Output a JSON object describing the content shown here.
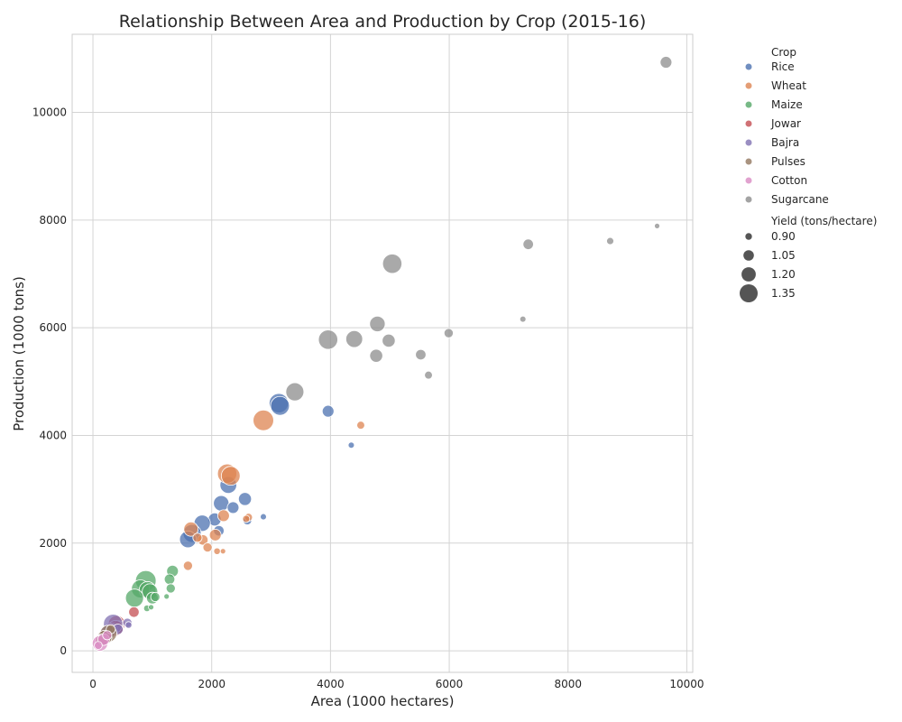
{
  "chart_data": {
    "type": "scatter",
    "title": "Relationship Between Area and Production by Crop (2015-16)",
    "xlabel": "Area (1000 hectares)",
    "ylabel": "Production (1000 tons)",
    "xlim": [
      -350,
      10100
    ],
    "ylim": [
      -400,
      11450
    ],
    "xticks": [
      0,
      2000,
      4000,
      6000,
      8000,
      10000
    ],
    "yticks": [
      0,
      2000,
      4000,
      6000,
      8000,
      10000
    ],
    "grid": true,
    "legend_position": "outside-right",
    "hue_title": "Crop",
    "size_title": "Yield (tons/hectare)",
    "size_legend": [
      {
        "label": "0.90",
        "value": 0.9
      },
      {
        "label": "1.05",
        "value": 1.05
      },
      {
        "label": "1.20",
        "value": 1.2
      },
      {
        "label": "1.35",
        "value": 1.35
      }
    ],
    "series": [
      {
        "name": "Rice",
        "color": "#4c72b0",
        "points": [
          [
            3130,
            4600,
            1.4
          ],
          [
            3150,
            4550,
            1.38
          ],
          [
            3960,
            4450,
            1.1
          ],
          [
            4350,
            3820,
            0.88
          ],
          [
            2280,
            3080,
            1.3
          ],
          [
            2160,
            2740,
            1.25
          ],
          [
            2560,
            2820,
            1.15
          ],
          [
            2360,
            2660,
            1.1
          ],
          [
            2050,
            2440,
            1.15
          ],
          [
            1840,
            2370,
            1.28
          ],
          [
            2120,
            2230,
            1.05
          ],
          [
            1670,
            2180,
            1.35
          ],
          [
            1600,
            2070,
            1.3
          ],
          [
            2600,
            2420,
            0.98
          ],
          [
            2870,
            2490,
            0.88
          ]
        ]
      },
      {
        "name": "Wheat",
        "color": "#dd8452",
        "points": [
          [
            2870,
            4280,
            1.45
          ],
          [
            4510,
            4190,
            0.95
          ],
          [
            2260,
            3290,
            1.4
          ],
          [
            2320,
            3250,
            1.38
          ],
          [
            2200,
            2510,
            1.1
          ],
          [
            2620,
            2480,
            0.95
          ],
          [
            2580,
            2450,
            0.92
          ],
          [
            1650,
            2260,
            1.2
          ],
          [
            2060,
            2150,
            1.1
          ],
          [
            1850,
            2060,
            1.05
          ],
          [
            1930,
            1920,
            1.0
          ],
          [
            2090,
            1850,
            0.9
          ],
          [
            2190,
            1850,
            0.85
          ],
          [
            1600,
            1580,
            1.0
          ],
          [
            1760,
            2100,
            1.0
          ]
        ]
      },
      {
        "name": "Maize",
        "color": "#55a868",
        "points": [
          [
            890,
            1300,
            1.45
          ],
          [
            800,
            1150,
            1.35
          ],
          [
            920,
            1130,
            1.3
          ],
          [
            960,
            1100,
            1.25
          ],
          [
            700,
            980,
            1.35
          ],
          [
            1000,
            980,
            1.1
          ],
          [
            1340,
            1480,
            1.1
          ],
          [
            1290,
            1330,
            1.05
          ],
          [
            1310,
            1160,
            1.0
          ],
          [
            1240,
            1010,
            0.85
          ],
          [
            1050,
            1000,
            1.0
          ],
          [
            910,
            790,
            0.9
          ],
          [
            980,
            810,
            0.85
          ]
        ]
      },
      {
        "name": "Jowar",
        "color": "#c44e52",
        "points": [
          [
            690,
            720,
            1.05
          ],
          [
            400,
            500,
            1.3
          ],
          [
            430,
            450,
            1.1
          ],
          [
            380,
            420,
            1.25
          ],
          [
            300,
            380,
            1.2
          ]
        ]
      },
      {
        "name": "Bajra",
        "color": "#8172b3",
        "points": [
          [
            340,
            500,
            1.4
          ],
          [
            580,
            520,
            1.0
          ],
          [
            250,
            340,
            1.2
          ],
          [
            420,
            400,
            1.05
          ],
          [
            600,
            480,
            0.9
          ]
        ]
      },
      {
        "name": "Pulses",
        "color": "#937860",
        "points": [
          [
            260,
            320,
            1.3
          ],
          [
            200,
            250,
            1.2
          ],
          [
            300,
            400,
            1.0
          ],
          [
            150,
            200,
            1.1
          ]
        ]
      },
      {
        "name": "Cotton",
        "color": "#da8bc3",
        "points": [
          [
            120,
            140,
            1.25
          ],
          [
            180,
            210,
            1.1
          ],
          [
            240,
            290,
            1.0
          ],
          [
            90,
            100,
            0.95
          ]
        ]
      },
      {
        "name": "Sugarcane",
        "color": "#8c8c8c",
        "points": [
          [
            9650,
            10930,
            1.1
          ],
          [
            7330,
            7550,
            1.05
          ],
          [
            8710,
            7610,
            0.92
          ],
          [
            9500,
            7890,
            0.85
          ],
          [
            5040,
            7190,
            1.4
          ],
          [
            7240,
            6160,
            0.88
          ],
          [
            4790,
            6070,
            1.25
          ],
          [
            5990,
            5900,
            1.0
          ],
          [
            3960,
            5780,
            1.4
          ],
          [
            4400,
            5790,
            1.3
          ],
          [
            4980,
            5760,
            1.15
          ],
          [
            4770,
            5480,
            1.15
          ],
          [
            5520,
            5500,
            1.05
          ],
          [
            5650,
            5120,
            0.95
          ],
          [
            3400,
            4810,
            1.35
          ]
        ]
      }
    ]
  }
}
